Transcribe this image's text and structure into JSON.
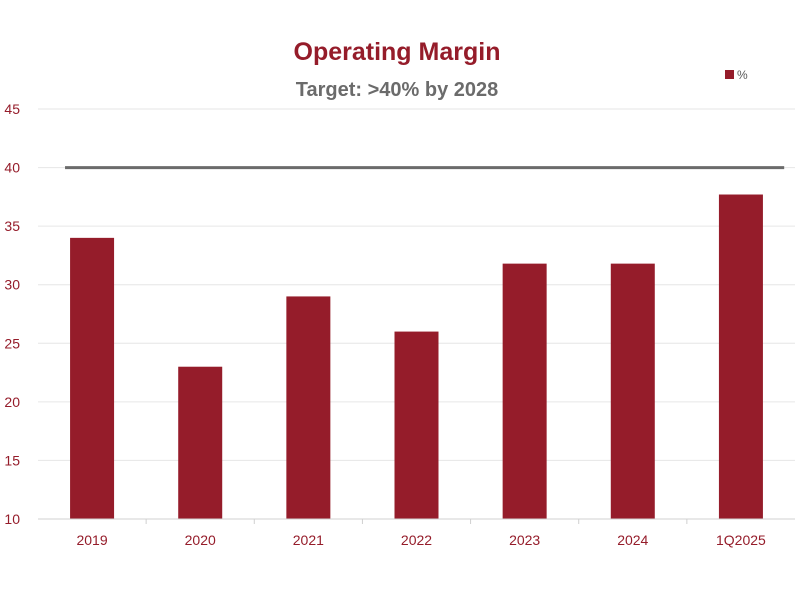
{
  "chart_data": {
    "type": "bar",
    "title": "Operating Margin",
    "subtitle": "Target: >40% by 2028",
    "categories": [
      "2019",
      "2020",
      "2021",
      "2022",
      "2023",
      "2024",
      "1Q2025"
    ],
    "series": [
      {
        "name": "%",
        "values": [
          34,
          23,
          29,
          26,
          31.8,
          31.8,
          37.7
        ]
      }
    ],
    "target_line": 40,
    "ylim": [
      10,
      45
    ],
    "yticks": [
      10,
      15,
      20,
      25,
      30,
      35,
      40,
      45
    ],
    "grid": true,
    "legend_position": "top-right",
    "colors": {
      "bar": "#951c2a",
      "title": "#951c2a",
      "subtitle": "#6b6b6b",
      "tick": "#951c2a",
      "target_line": "#6b6b6b",
      "grid": "#e6e6e6",
      "axis": "#d0d0d0"
    }
  }
}
